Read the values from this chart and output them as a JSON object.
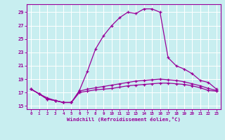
{
  "xlabel": "Windchill (Refroidissement éolien,°C)",
  "bg_color": "#c8eef0",
  "grid_color": "#ffffff",
  "line_color": "#990099",
  "xlim": [
    -0.5,
    23.5
  ],
  "ylim": [
    14.5,
    30.2
  ],
  "yticks": [
    15,
    17,
    19,
    21,
    23,
    25,
    27,
    29
  ],
  "xticks": [
    0,
    1,
    2,
    3,
    4,
    5,
    6,
    7,
    8,
    9,
    10,
    11,
    12,
    13,
    14,
    15,
    16,
    17,
    18,
    19,
    20,
    21,
    22,
    23
  ],
  "series1_x": [
    0,
    1,
    2,
    3,
    4,
    5,
    6,
    7,
    8,
    9,
    10,
    11,
    12,
    13,
    14,
    15,
    16,
    17,
    18,
    19,
    20,
    21,
    22,
    23
  ],
  "series1_y": [
    17.5,
    16.8,
    16.2,
    15.8,
    15.5,
    15.5,
    17.3,
    20.2,
    23.5,
    25.5,
    27.0,
    28.2,
    29.0,
    28.8,
    29.5,
    29.5,
    29.0,
    22.2,
    21.0,
    20.5,
    19.8,
    18.8,
    18.5,
    17.5
  ],
  "series2_x": [
    0,
    1,
    2,
    3,
    4,
    5,
    6,
    7,
    8,
    9,
    10,
    11,
    12,
    13,
    14,
    15,
    16,
    17,
    18,
    19,
    20,
    21,
    22,
    23
  ],
  "series2_y": [
    17.5,
    16.8,
    16.0,
    15.8,
    15.5,
    15.5,
    17.0,
    17.2,
    17.4,
    17.5,
    17.6,
    17.8,
    18.0,
    18.1,
    18.2,
    18.3,
    18.4,
    18.4,
    18.3,
    18.2,
    18.0,
    17.7,
    17.3,
    17.2
  ],
  "series3_x": [
    0,
    1,
    2,
    3,
    4,
    5,
    6,
    7,
    8,
    9,
    10,
    11,
    12,
    13,
    14,
    15,
    16,
    17,
    18,
    19,
    20,
    21,
    22,
    23
  ],
  "series3_y": [
    17.5,
    16.8,
    16.0,
    15.8,
    15.5,
    15.5,
    17.2,
    17.5,
    17.7,
    17.9,
    18.1,
    18.3,
    18.5,
    18.7,
    18.8,
    18.9,
    19.0,
    18.9,
    18.8,
    18.6,
    18.3,
    18.0,
    17.6,
    17.3
  ]
}
